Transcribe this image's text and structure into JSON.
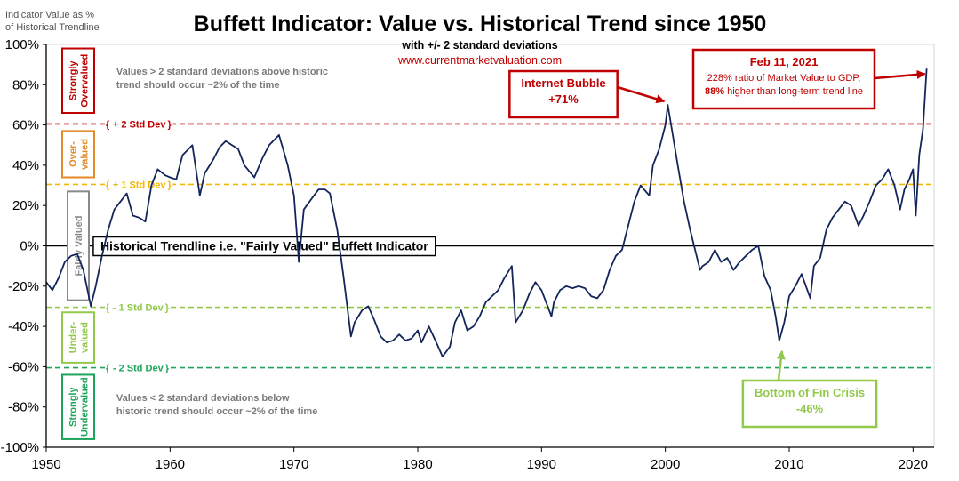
{
  "colors": {
    "series": "#13255a",
    "red": "#c00000",
    "orange": "#e38a2a",
    "yellow": "#f2b705",
    "lightgreen": "#92c94a",
    "darkgreen": "#1ea45a",
    "gray": "#8a8a8a"
  },
  "chart_data": {
    "type": "line",
    "title": "Buffett Indicator: Value vs. Historical Trend since 1950",
    "subtitle": "with +/- 2 standard deviations",
    "source": "www.currentmarketvaluation.com",
    "ylabel_lines": [
      "Indicator Value as %",
      "of Historical Trendline"
    ],
    "xlim": [
      1950,
      2021.7
    ],
    "ylim": [
      -100,
      100
    ],
    "x_ticks": [
      1950,
      1960,
      1970,
      1980,
      1990,
      2000,
      2010,
      2020
    ],
    "y_ticks": [
      {
        "value": 100,
        "label": "100%"
      },
      {
        "value": 80,
        "label": "80%"
      },
      {
        "value": 60,
        "label": "60%"
      },
      {
        "value": 40,
        "label": "40%"
      },
      {
        "value": 20,
        "label": "20%"
      },
      {
        "value": 0,
        "label": "0%"
      },
      {
        "value": -20,
        "label": "-20%"
      },
      {
        "value": -40,
        "label": "-40%"
      },
      {
        "value": -60,
        "label": "-60%"
      },
      {
        "value": -80,
        "label": "-80%"
      },
      {
        "value": -100,
        "label": "-100%"
      }
    ],
    "grid": false,
    "reference_lines": [
      {
        "value": 60.5,
        "label": "+ 2 Std Dev",
        "color_key": "red",
        "label_x": 1954.8
      },
      {
        "value": 30.5,
        "label": "+ 1 Std Dev",
        "color_key": "yellow",
        "label_x": 1954.8
      },
      {
        "value": 0,
        "label": "Historical Trendline i.e. \"Fairly Valued\" Buffett Indicator",
        "color_key": "black",
        "label_x": 1953.8
      },
      {
        "value": -30.5,
        "label": "- 1 Std Dev",
        "color_key": "lightgreen",
        "label_x": 1954.8
      },
      {
        "value": -60.5,
        "label": "- 2 Std Dev",
        "color_key": "darkgreen",
        "label_x": 1954.8
      }
    ],
    "valuation_bands": [
      {
        "lines": [
          "Strongly",
          "Overvalued"
        ],
        "y_top": 98,
        "y_bottom": 66,
        "color_key": "red"
      },
      {
        "lines": [
          "Over-",
          "valued"
        ],
        "y_top": 57,
        "y_bottom": 34,
        "color_key": "orange"
      },
      {
        "lines": [
          "Fairly Valued"
        ],
        "y_top": 27,
        "y_bottom": -27,
        "color_key": "gray"
      },
      {
        "lines": [
          "Under-",
          "valued"
        ],
        "y_top": -33,
        "y_bottom": -58,
        "color_key": "lightgreen"
      },
      {
        "lines": [
          "Strongly",
          "Undervalued"
        ],
        "y_top": -64,
        "y_bottom": -96,
        "color_key": "darkgreen"
      }
    ],
    "notes": [
      {
        "lines": [
          "Values > 2 standard deviations above historic",
          "trend should occur ~2% of the time"
        ],
        "x": 1954.8,
        "y": 85
      },
      {
        "lines": [
          "Values < 2 standard deviations below",
          "historic trend should occur ~2% of the time"
        ],
        "x": 1954.8,
        "y": -77
      }
    ],
    "callouts": [
      {
        "title": "Internet Bubble",
        "value": "+71%",
        "x": 2000.2,
        "y": 70,
        "color_key": "red"
      },
      {
        "title": "Bottom of Fin Crisis",
        "value": "-46%",
        "x": 2009.2,
        "y": -47,
        "color_key": "lightgreen"
      },
      {
        "title": "Feb 11, 2021",
        "lines": [
          "228% ratio of Market Value to GDP,"
        ],
        "highlight": "88%",
        "tail": " higher than long-term trend line",
        "x": 2021.1,
        "y": 88,
        "color_key": "red"
      }
    ],
    "series": [
      {
        "x": [
          1950.0,
          1950.5,
          1951.0,
          1951.5,
          1952.0,
          1952.5,
          1953.0,
          1953.6,
          1954.0,
          1954.5,
          1955.0,
          1955.5,
          1956.0,
          1956.5,
          1957.0,
          1957.5,
          1958.0,
          1958.5,
          1959.0,
          1959.6,
          1960.0,
          1960.5,
          1961.0,
          1961.8,
          1962.4,
          1962.8,
          1963.5,
          1964.0,
          1964.5,
          1965.0,
          1965.5,
          1966.0,
          1966.8,
          1967.5,
          1968.0,
          1968.8,
          1969.5,
          1970.0,
          1970.4,
          1970.8,
          1971.5,
          1972.0,
          1972.5,
          1972.9,
          1973.5,
          1974.0,
          1974.6,
          1974.9,
          1975.5,
          1976.0,
          1976.5,
          1977.0,
          1977.5,
          1978.0,
          1978.5,
          1979.0,
          1979.5,
          1980.0,
          1980.3,
          1980.9,
          1981.5,
          1982.0,
          1982.6,
          1983.0,
          1983.5,
          1984.0,
          1984.5,
          1985.0,
          1985.5,
          1986.0,
          1986.5,
          1987.0,
          1987.6,
          1987.9,
          1988.5,
          1989.0,
          1989.5,
          1990.0,
          1990.8,
          1991.0,
          1991.5,
          1992.0,
          1992.5,
          1993.0,
          1993.5,
          1994.0,
          1994.5,
          1995.0,
          1995.5,
          1996.0,
          1996.5,
          1997.0,
          1997.5,
          1998.0,
          1998.7,
          1999.0,
          1999.5,
          2000.0,
          2000.2,
          2000.6,
          2001.0,
          2001.5,
          2002.0,
          2002.8,
          2003.0,
          2003.5,
          2004.0,
          2004.5,
          2005.0,
          2005.5,
          2006.0,
          2006.5,
          2007.0,
          2007.5,
          2008.0,
          2008.5,
          2008.9,
          2009.2,
          2009.6,
          2010.0,
          2010.5,
          2011.0,
          2011.7,
          2012.0,
          2012.5,
          2013.0,
          2013.5,
          2014.0,
          2014.5,
          2015.0,
          2015.6,
          2016.0,
          2016.5,
          2017.0,
          2017.5,
          2018.0,
          2018.5,
          2018.95,
          2019.3,
          2019.7,
          2020.0,
          2020.22,
          2020.5,
          2020.8,
          2021.1
        ],
        "y": [
          -18,
          -22,
          -16,
          -8,
          -5,
          -4,
          -12,
          -30,
          -20,
          -5,
          8,
          18,
          22,
          26,
          15,
          14,
          12,
          30,
          38,
          35,
          34,
          33,
          45,
          50,
          25,
          36,
          43,
          49,
          52,
          50,
          48,
          40,
          34,
          44,
          50,
          55,
          40,
          25,
          -8,
          18,
          24,
          28,
          28,
          26,
          8,
          -15,
          -45,
          -38,
          -32,
          -30,
          -37,
          -45,
          -48,
          -47,
          -44,
          -47,
          -46,
          -42,
          -48,
          -40,
          -48,
          -55,
          -50,
          -38,
          -32,
          -42,
          -40,
          -35,
          -28,
          -25,
          -22,
          -16,
          -10,
          -38,
          -32,
          -24,
          -18,
          -22,
          -35,
          -28,
          -22,
          -20,
          -21,
          -20,
          -21,
          -25,
          -26,
          -22,
          -12,
          -5,
          -2,
          10,
          22,
          30,
          25,
          40,
          48,
          60,
          70,
          55,
          40,
          22,
          8,
          -12,
          -10,
          -8,
          -2,
          -8,
          -6,
          -12,
          -8,
          -5,
          -2,
          0,
          -15,
          -22,
          -35,
          -47,
          -38,
          -25,
          -20,
          -14,
          -26,
          -10,
          -6,
          8,
          14,
          18,
          22,
          20,
          10,
          15,
          22,
          30,
          33,
          38,
          30,
          18,
          28,
          33,
          38,
          15,
          45,
          58,
          88
        ]
      }
    ]
  }
}
